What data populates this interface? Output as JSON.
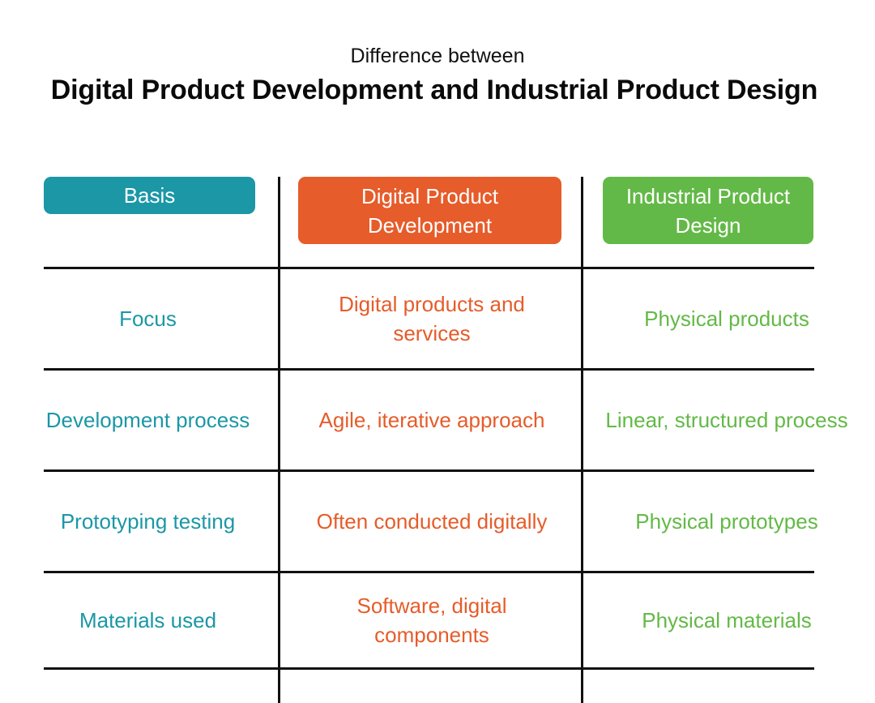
{
  "header": {
    "subtitle": "Difference between",
    "title": "Digital Product Development and Industrial Product Design"
  },
  "columns": {
    "basis": "Basis",
    "digital": [
      "Digital Product",
      "Development"
    ],
    "industrial": [
      "Industrial Product",
      "Design"
    ]
  },
  "rows": [
    {
      "basis": "Focus",
      "digital": [
        "Digital products and",
        "services"
      ],
      "industrial": "Physical products"
    },
    {
      "basis": "Development process",
      "digital": [
        "Agile, iterative approach"
      ],
      "industrial": "Linear, structured process"
    },
    {
      "basis": "Prototyping testing",
      "digital": [
        "Often conducted digitally"
      ],
      "industrial": "Physical prototypes"
    },
    {
      "basis": "Materials used",
      "digital": [
        "Software, digital",
        "components"
      ],
      "industrial": "Physical materials"
    }
  ],
  "colors": {
    "basis": "#1b97a6",
    "digital": "#e65c2a",
    "industrial": "#63b947",
    "lines": "#111111"
  }
}
